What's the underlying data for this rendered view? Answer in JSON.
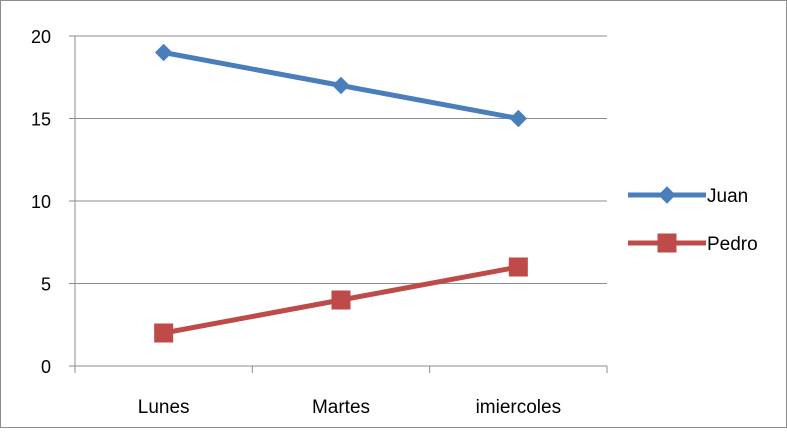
{
  "chart_data": {
    "type": "line",
    "categories": [
      "Lunes",
      "Martes",
      "imiercoles"
    ],
    "ylim": [
      0,
      20
    ],
    "yticks": [
      0,
      5,
      10,
      15,
      20
    ],
    "grid": true,
    "legend": "right",
    "series": [
      {
        "name": "Juan",
        "values": [
          19,
          17,
          15
        ],
        "color": "#4a7ebb",
        "marker": "diamond"
      },
      {
        "name": "Pedro",
        "values": [
          2,
          4,
          6
        ],
        "color": "#be4b48",
        "marker": "square"
      }
    ]
  }
}
